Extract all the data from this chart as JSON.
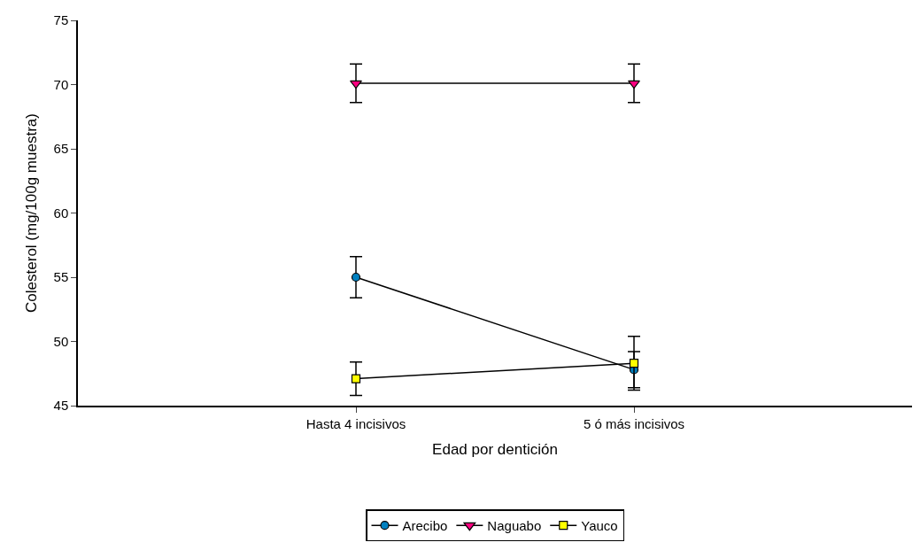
{
  "chart_data": {
    "type": "line",
    "xlabel": "Edad por dentición",
    "ylabel": "Colesterol (mg/100g muestra)",
    "categories": [
      "Hasta 4 incisivos",
      "5 ó más incisivos"
    ],
    "ylim": [
      45,
      75
    ],
    "yticks": [
      45,
      50,
      55,
      60,
      65,
      70,
      75
    ],
    "legend": "bottom",
    "series": [
      {
        "name": "Arecibo",
        "color": "#0080c0",
        "marker": "circle",
        "values": [
          55.0,
          47.8
        ],
        "errors": [
          1.6,
          1.4
        ]
      },
      {
        "name": "Naguabo",
        "color": "#ff0080",
        "marker": "triangle",
        "values": [
          70.1,
          70.1
        ],
        "errors": [
          1.5,
          1.5
        ]
      },
      {
        "name": "Yauco",
        "color": "#ffff00",
        "marker": "square",
        "values": [
          47.1,
          48.3
        ],
        "errors": [
          1.3,
          2.1
        ]
      }
    ]
  }
}
